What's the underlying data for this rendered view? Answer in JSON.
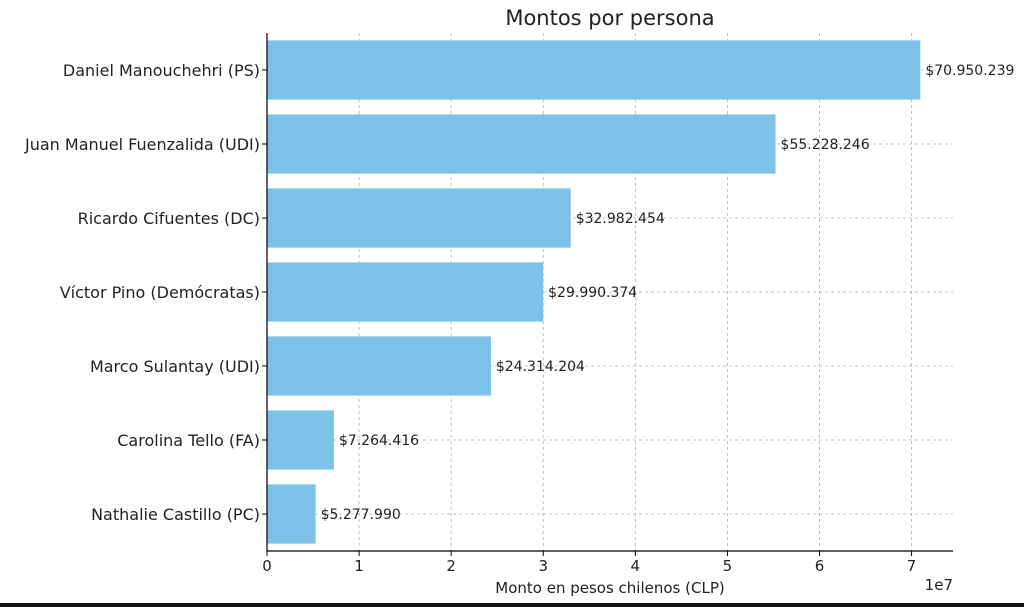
{
  "chart_data": {
    "type": "bar",
    "orientation": "horizontal",
    "title": "Montos por persona",
    "xlabel": "Monto en pesos chilenos (CLP)",
    "ylabel": "",
    "x_scale_label": "1e7",
    "xlim": [
      0,
      74500000
    ],
    "x_ticks": [
      0,
      10000000,
      20000000,
      30000000,
      40000000,
      50000000,
      60000000,
      70000000
    ],
    "x_tick_labels": [
      "0",
      "1",
      "2",
      "3",
      "4",
      "5",
      "6",
      "7"
    ],
    "grid": true,
    "bar_color": "#7BC1E8",
    "categories": [
      "Daniel Manouchehri (PS)",
      "Juan Manuel Fuenzalida (UDI)",
      "Ricardo Cifuentes (DC)",
      "Víctor Pino (Demócratas)",
      "Marco Sulantay (UDI)",
      "Carolina Tello (FA)",
      "Nathalie Castillo (PC)"
    ],
    "values": [
      70950239,
      55228246,
      32982454,
      29990374,
      24314204,
      7264416,
      5277990
    ],
    "value_labels": [
      "$70.950.239",
      "$55.228.246",
      "$32.982.454",
      "$29.990.374",
      "$24.314.204",
      "$7.264.416",
      "$5.277.990"
    ]
  }
}
